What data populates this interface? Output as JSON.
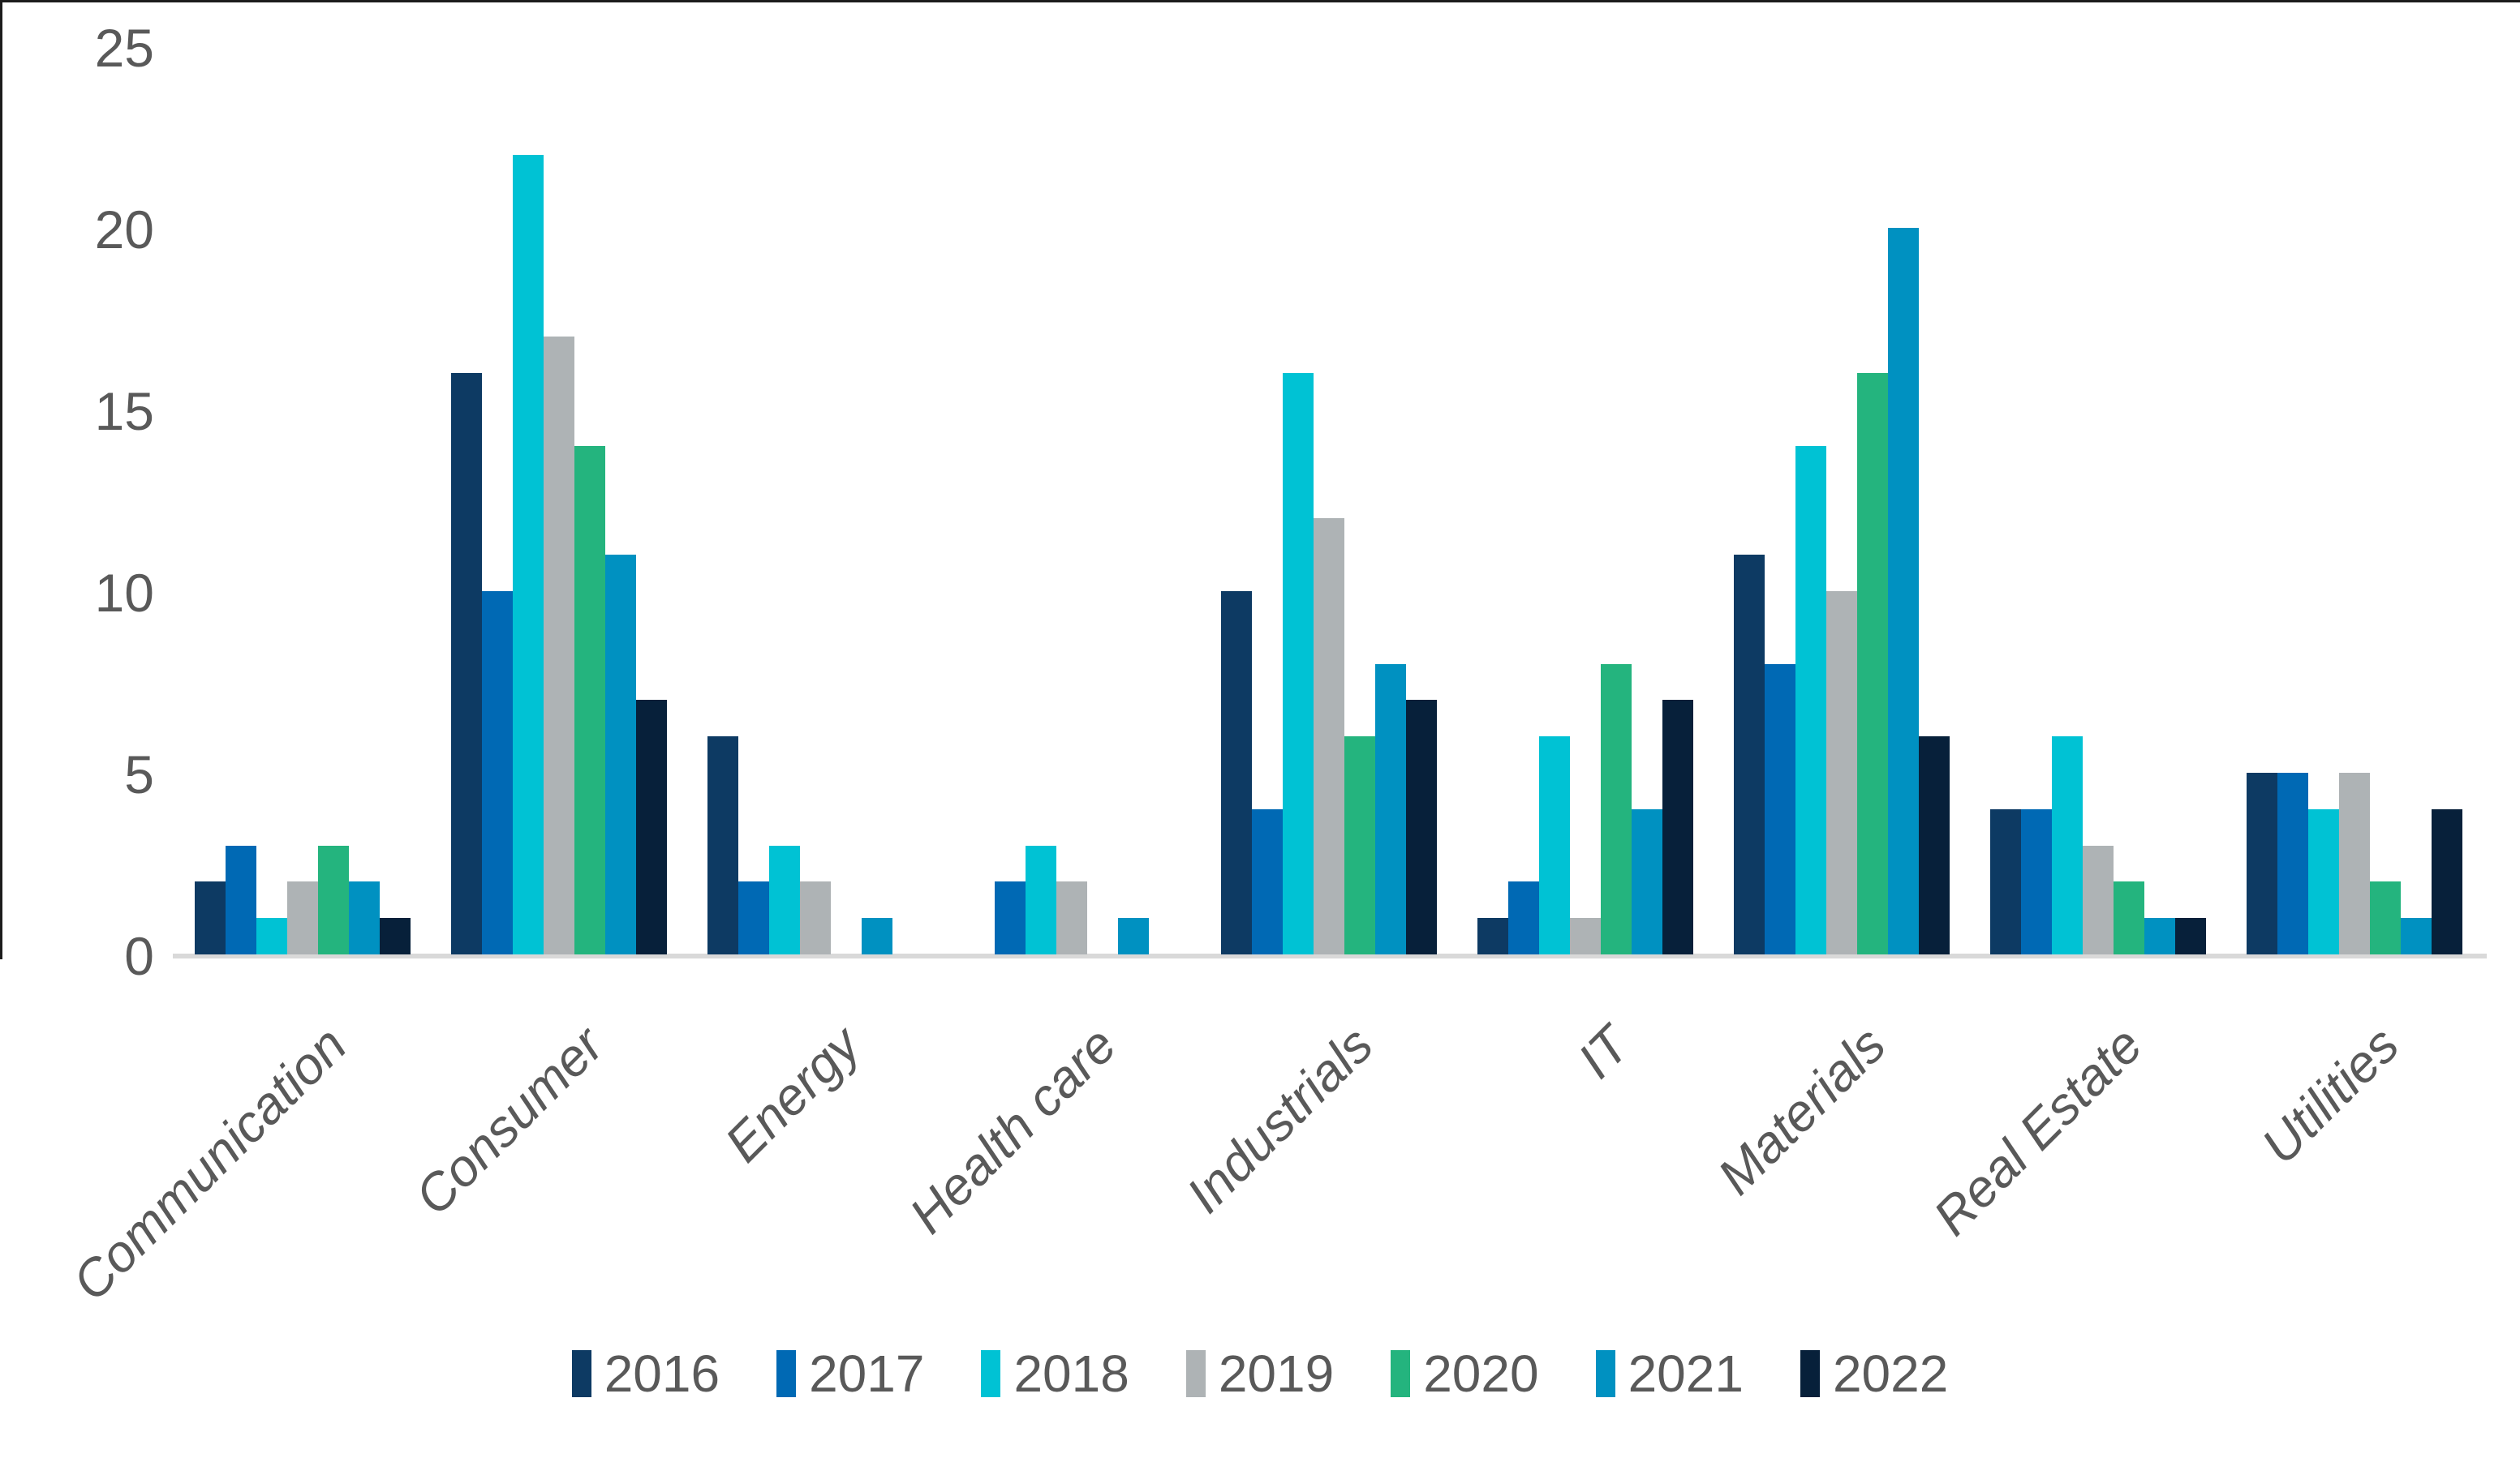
{
  "chart_data": {
    "type": "bar",
    "title": "",
    "xlabel": "",
    "ylabel": "",
    "categories": [
      "Communication",
      "Consumer",
      "Energy",
      "Health care",
      "Industrials",
      "IT",
      "Materials",
      "Real Estate",
      "Utilities"
    ],
    "series": [
      {
        "name": "2016",
        "color": "#0d3a63",
        "values": [
          2,
          16,
          6,
          0,
          10,
          1,
          11,
          4,
          5
        ]
      },
      {
        "name": "2017",
        "color": "#0069b4",
        "values": [
          3,
          10,
          2,
          2,
          4,
          2,
          8,
          4,
          5
        ]
      },
      {
        "name": "2018",
        "color": "#00c2d4",
        "values": [
          1,
          22,
          3,
          3,
          16,
          6,
          14,
          6,
          4
        ]
      },
      {
        "name": "2019",
        "color": "#aeb3b5",
        "values": [
          2,
          17,
          2,
          2,
          12,
          1,
          10,
          3,
          5
        ]
      },
      {
        "name": "2020",
        "color": "#24b47e",
        "values": [
          3,
          14,
          0,
          0,
          6,
          8,
          16,
          2,
          2
        ]
      },
      {
        "name": "2021",
        "color": "#0091c1",
        "values": [
          2,
          11,
          1,
          1,
          8,
          4,
          20,
          1,
          1
        ]
      },
      {
        "name": "2022",
        "color": "#07203a",
        "values": [
          1,
          7,
          0,
          0,
          7,
          7,
          6,
          1,
          4
        ]
      }
    ],
    "ylim": [
      0,
      25
    ],
    "yticks": [
      "0",
      "5",
      "10",
      "15",
      "20",
      "25"
    ],
    "grid": false,
    "legend_position": "bottom",
    "axis_line_color": "#d9d9d9",
    "tick_label_color": "#595959",
    "category_label_color": "#595959"
  }
}
